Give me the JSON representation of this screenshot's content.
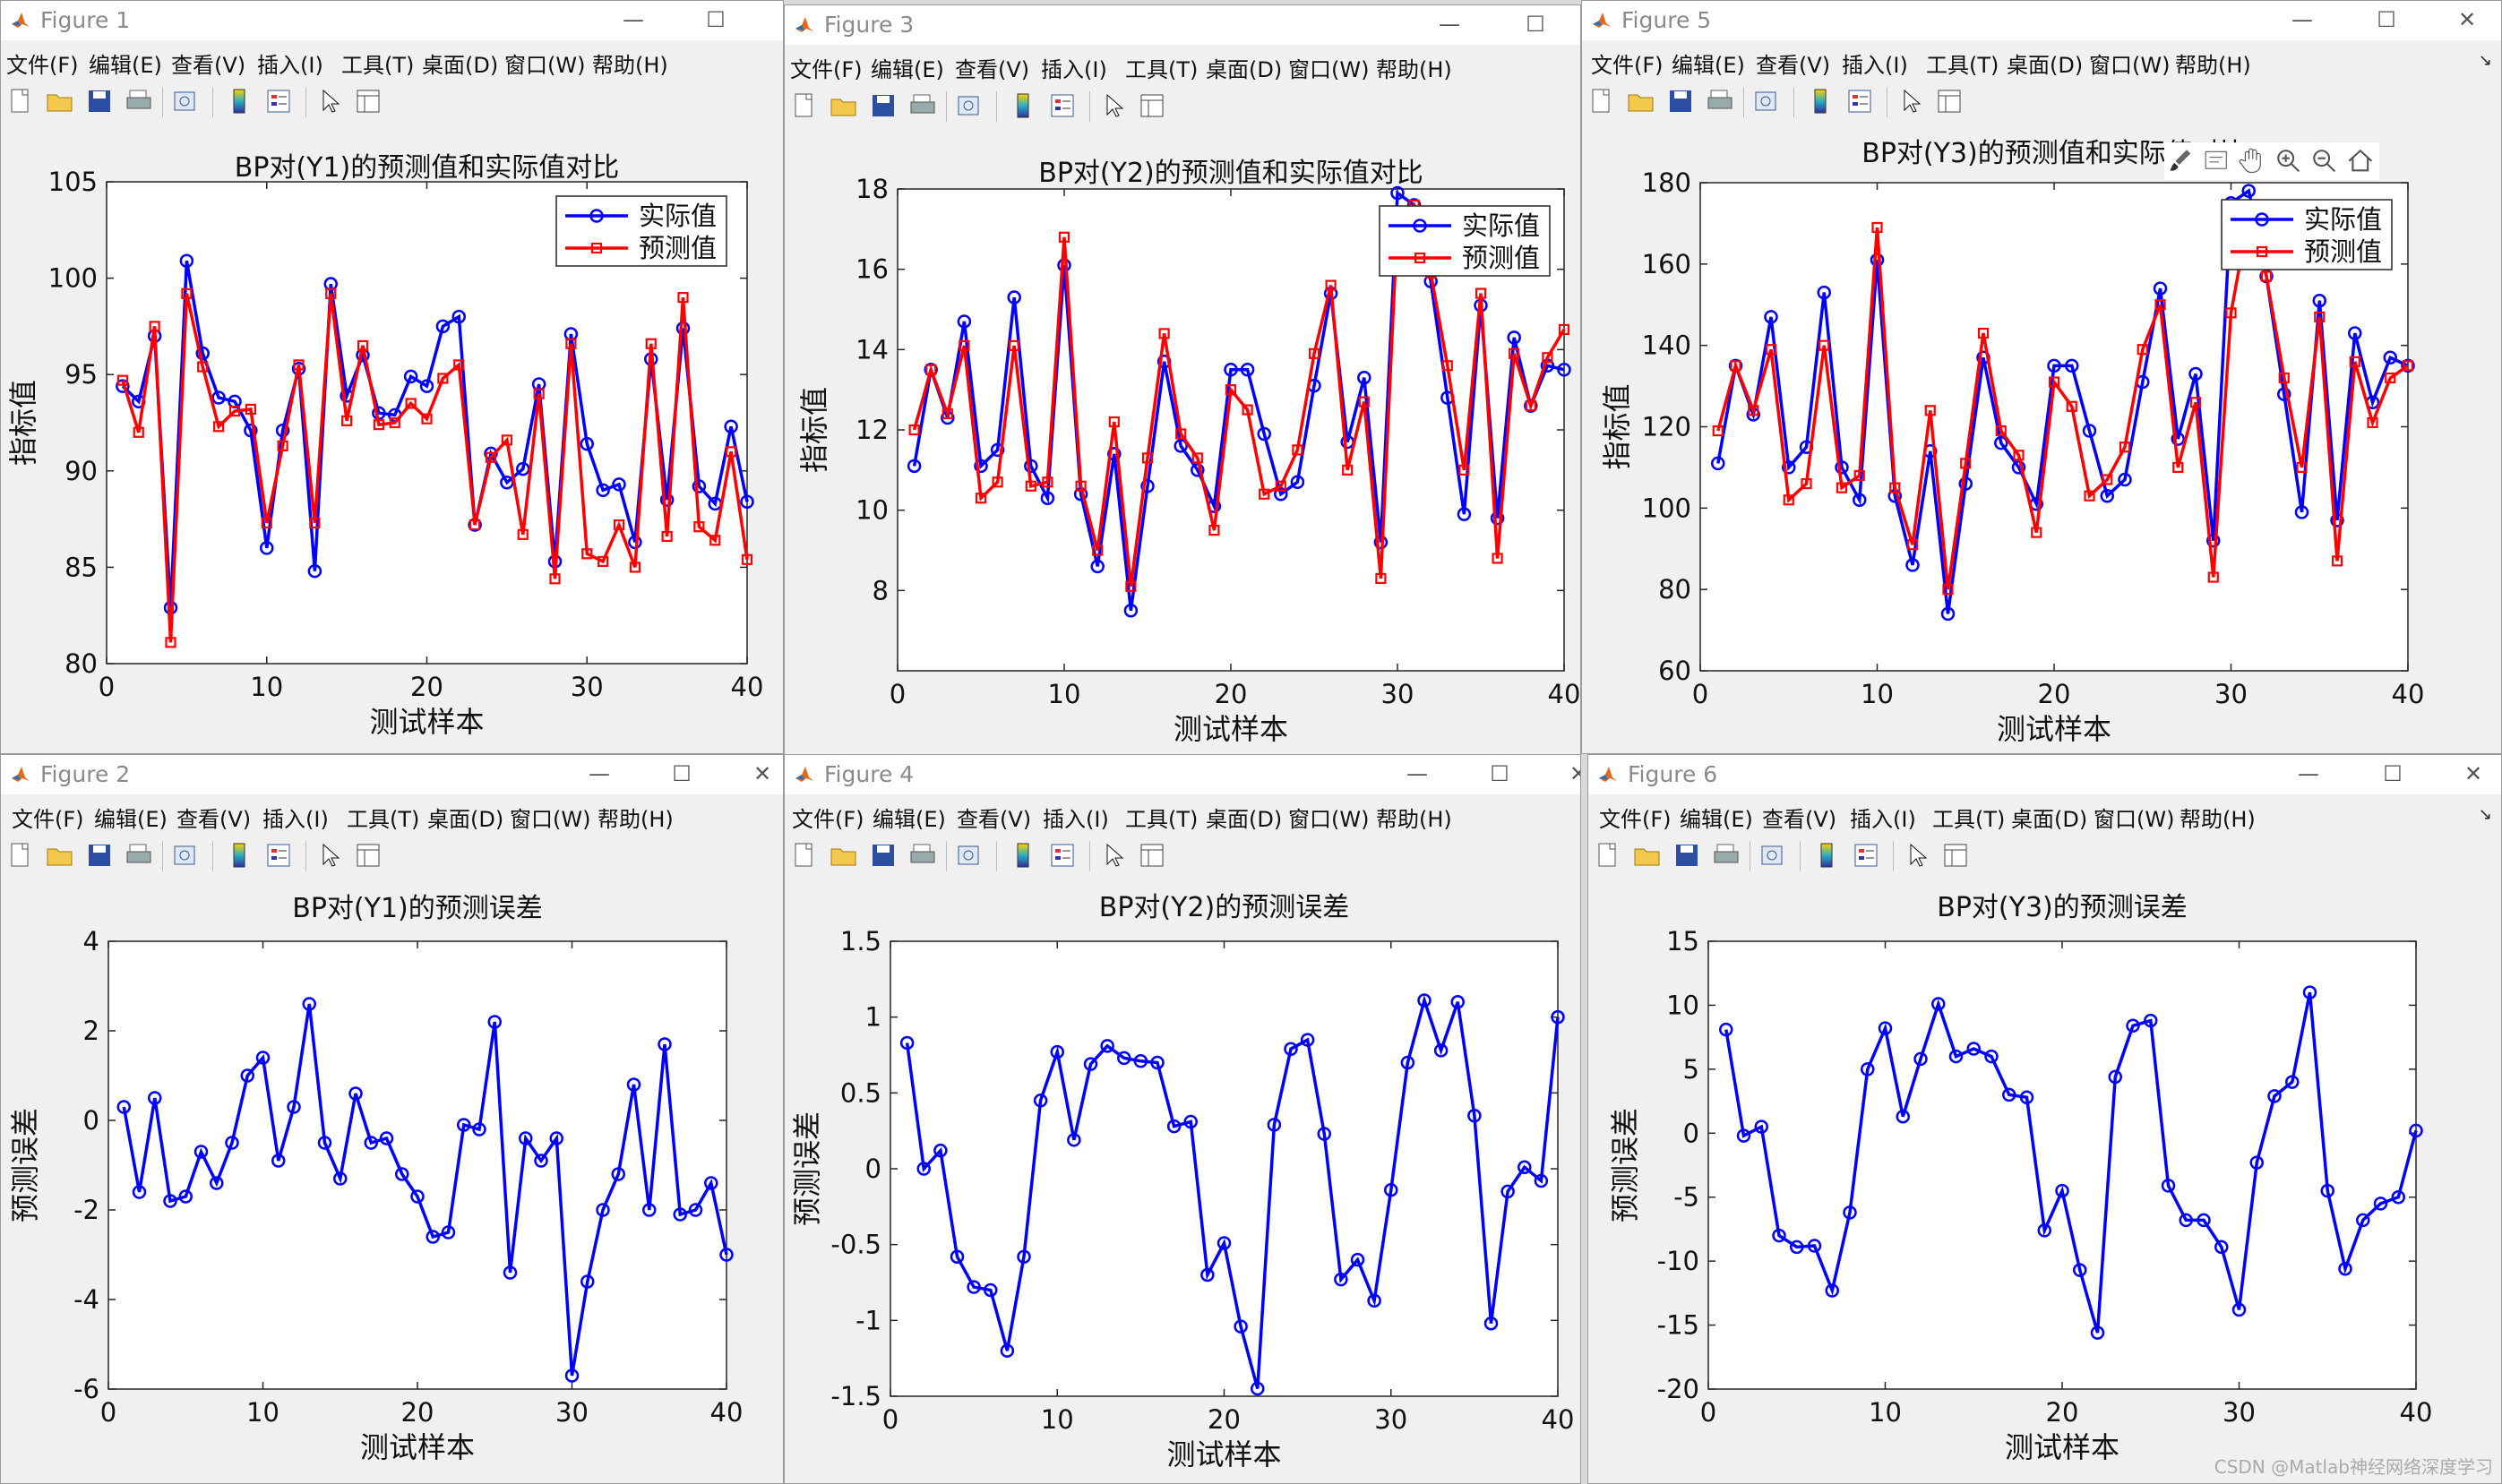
{
  "menus": [
    "文件(F)",
    "编辑(E)",
    "查看(V)",
    "插入(I)",
    "工具(T)",
    "桌面(D)",
    "窗口(W)",
    "帮助(H)"
  ],
  "toolbar_icons": [
    "new-figure-icon",
    "open-file-icon",
    "save-icon",
    "print-icon",
    "print-preview-icon",
    "colorbar-icon",
    "legend-icon",
    "edit-plot-arrow-icon",
    "property-inspector-icon"
  ],
  "axes_toolbar_icons": [
    "brush-icon",
    "data-tips-icon",
    "pan-hand-icon",
    "zoom-in-icon",
    "zoom-out-icon",
    "home-icon"
  ],
  "watermark": "CSDN @Matlab神经网络深度学习",
  "colors": {
    "actual": "#0000ff",
    "predicted": "#ff0000",
    "error": "#0000ff"
  },
  "windows": [
    {
      "id": "fig1",
      "title": "Figure 1",
      "chart_data": {
        "type": "line",
        "title": "BP对(Y1)的预测值和实际值对比",
        "xlabel": "测试样本",
        "ylabel": "指标值",
        "xlim": [
          0,
          40
        ],
        "ylim": [
          80,
          105
        ],
        "xticks": [
          0,
          10,
          20,
          30,
          40
        ],
        "yticks": [
          80,
          85,
          90,
          95,
          100,
          105
        ],
        "legend": "top-right",
        "x": [
          1,
          2,
          3,
          4,
          5,
          6,
          7,
          8,
          9,
          10,
          11,
          12,
          13,
          14,
          15,
          16,
          17,
          18,
          19,
          20,
          21,
          22,
          23,
          24,
          25,
          26,
          27,
          28,
          29,
          30,
          31,
          32,
          33,
          34,
          35,
          36,
          37,
          38,
          39,
          40
        ],
        "series": [
          {
            "name": "实际值",
            "marker": "circle",
            "values": [
              94.4,
              93.6,
              97.0,
              82.9,
              100.9,
              96.1,
              93.8,
              93.6,
              92.1,
              86.0,
              92.1,
              95.3,
              84.8,
              99.7,
              93.9,
              96.0,
              93.0,
              92.9,
              94.9,
              94.4,
              97.5,
              98.0,
              87.2,
              90.9,
              89.4,
              90.1,
              94.5,
              85.3,
              97.1,
              91.4,
              89.0,
              89.3,
              86.3,
              95.8,
              88.5,
              97.4,
              89.2,
              88.3,
              92.3,
              88.4
            ]
          },
          {
            "name": "预测值",
            "marker": "square",
            "values": [
              94.7,
              92.0,
              97.5,
              81.1,
              99.2,
              95.4,
              92.3,
              93.1,
              93.2,
              87.3,
              91.3,
              95.5,
              87.3,
              99.2,
              92.6,
              96.5,
              92.4,
              92.5,
              93.5,
              92.7,
              94.8,
              95.5,
              87.2,
              90.7,
              91.6,
              86.7,
              94.0,
              84.4,
              96.6,
              85.7,
              85.3,
              87.2,
              85.0,
              96.6,
              86.6,
              99.0,
              87.1,
              86.4,
              91.0,
              85.4
            ]
          }
        ]
      }
    },
    {
      "id": "fig3",
      "title": "Figure 3",
      "chart_data": {
        "type": "line",
        "title": "BP对(Y2)的预测值和实际值对比",
        "xlabel": "测试样本",
        "ylabel": "指标值",
        "xlim": [
          0,
          40
        ],
        "ylim": [
          6,
          18
        ],
        "xticks": [
          0,
          10,
          20,
          30,
          40
        ],
        "yticks": [
          8,
          10,
          12,
          14,
          16,
          18
        ],
        "legend": "top-right",
        "x": [
          1,
          2,
          3,
          4,
          5,
          6,
          7,
          8,
          9,
          10,
          11,
          12,
          13,
          14,
          15,
          16,
          17,
          18,
          19,
          20,
          21,
          22,
          23,
          24,
          25,
          26,
          27,
          28,
          29,
          30,
          31,
          32,
          33,
          34,
          35,
          36,
          37,
          38,
          39,
          40
        ],
        "series": [
          {
            "name": "实际值",
            "marker": "circle",
            "values": [
              11.1,
              13.5,
              12.3,
              14.7,
              11.1,
              11.5,
              15.3,
              11.1,
              10.3,
              16.1,
              10.4,
              8.6,
              11.4,
              7.5,
              10.6,
              13.7,
              11.6,
              11.0,
              10.1,
              13.5,
              13.5,
              11.9,
              10.4,
              10.7,
              13.1,
              15.4,
              11.7,
              13.3,
              9.2,
              17.9,
              17.6,
              15.7,
              12.8,
              9.9,
              15.1,
              9.8,
              14.3,
              12.6,
              13.6,
              13.5
            ]
          },
          {
            "name": "预测值",
            "marker": "square",
            "values": [
              12.0,
              13.5,
              12.4,
              14.1,
              10.3,
              10.7,
              14.1,
              10.6,
              10.7,
              16.8,
              10.6,
              9.0,
              12.2,
              8.1,
              11.3,
              14.4,
              11.9,
              11.3,
              9.5,
              13.0,
              12.5,
              10.4,
              10.6,
              11.5,
              13.9,
              15.6,
              11.0,
              12.7,
              8.3,
              17.2,
              17.6,
              15.9,
              13.6,
              11.0,
              15.4,
              8.8,
              13.9,
              12.6,
              13.8,
              14.5
            ]
          }
        ]
      }
    },
    {
      "id": "fig5",
      "title": "Figure 5",
      "chart_data": {
        "type": "line",
        "title": "BP对(Y3)的预测值和实际值对比",
        "xlabel": "测试样本",
        "ylabel": "指标值",
        "xlim": [
          0,
          40
        ],
        "ylim": [
          60,
          180
        ],
        "xticks": [
          0,
          10,
          20,
          30,
          40
        ],
        "yticks": [
          60,
          80,
          100,
          120,
          140,
          160,
          180
        ],
        "legend": "top-right",
        "x": [
          1,
          2,
          3,
          4,
          5,
          6,
          7,
          8,
          9,
          10,
          11,
          12,
          13,
          14,
          15,
          16,
          17,
          18,
          19,
          20,
          21,
          22,
          23,
          24,
          25,
          26,
          27,
          28,
          29,
          30,
          31,
          32,
          33,
          34,
          35,
          36,
          37,
          38,
          39,
          40
        ],
        "series": [
          {
            "name": "实际值",
            "marker": "circle",
            "values": [
              111,
              135,
              123,
              147,
              110,
              115,
              153,
              110,
              102,
              161,
              103,
              86,
              114,
              74,
              106,
              137,
              116,
              110,
              101,
              135,
              135,
              119,
              103,
              107,
              131,
              154,
              117,
              133,
              92,
              175,
              178,
              157,
              128,
              99,
              151,
              97,
              143,
              126,
              137,
              135
            ]
          },
          {
            "name": "预测值",
            "marker": "square",
            "values": [
              119,
              135,
              124,
              139,
              102,
              106,
              140,
              105,
              108,
              169,
              105,
              91,
              124,
              80,
              111,
              143,
              119,
              113,
              94,
              131,
              125,
              103,
              107,
              115,
              139,
              150,
              110,
              126,
              83,
              148,
              172,
              157,
              132,
              110,
              147,
              87,
              136,
              121,
              132,
              135
            ]
          }
        ]
      }
    },
    {
      "id": "fig2",
      "title": "Figure 2",
      "chart_data": {
        "type": "line",
        "title": "BP对(Y1)的预测误差",
        "xlabel": "测试样本",
        "ylabel": "预测误差",
        "xlim": [
          0,
          40
        ],
        "ylim": [
          -6,
          4
        ],
        "xticks": [
          0,
          10,
          20,
          30,
          40
        ],
        "yticks": [
          -6,
          -4,
          -2,
          0,
          2,
          4
        ],
        "x": [
          1,
          2,
          3,
          4,
          5,
          6,
          7,
          8,
          9,
          10,
          11,
          12,
          13,
          14,
          15,
          16,
          17,
          18,
          19,
          20,
          21,
          22,
          23,
          24,
          25,
          26,
          27,
          28,
          29,
          30,
          31,
          32,
          33,
          34,
          35,
          36,
          37,
          38,
          39,
          40
        ],
        "series": [
          {
            "name": "",
            "marker": "circle",
            "values": [
              0.3,
              -1.6,
              0.5,
              -1.8,
              -1.7,
              -0.7,
              -1.4,
              -0.5,
              1.0,
              1.4,
              -0.9,
              0.3,
              2.6,
              -0.5,
              -1.3,
              0.6,
              -0.5,
              -0.4,
              -1.2,
              -1.7,
              -2.6,
              -2.5,
              -0.1,
              -0.2,
              2.2,
              -3.4,
              -0.4,
              -0.9,
              -0.4,
              -5.7,
              -3.6,
              -2.0,
              -1.2,
              0.8,
              -2.0,
              1.7,
              -2.1,
              -2.0,
              -1.4,
              -3.0
            ]
          }
        ]
      }
    },
    {
      "id": "fig4",
      "title": "Figure 4",
      "chart_data": {
        "type": "line",
        "title": "BP对(Y2)的预测误差",
        "xlabel": "测试样本",
        "ylabel": "预测误差",
        "xlim": [
          0,
          40
        ],
        "ylim": [
          -1.5,
          1.5
        ],
        "xticks": [
          0,
          10,
          20,
          30,
          40
        ],
        "yticks": [
          -1.5,
          -1,
          -0.5,
          0,
          0.5,
          1,
          1.5
        ],
        "x": [
          1,
          2,
          3,
          4,
          5,
          6,
          7,
          8,
          9,
          10,
          11,
          12,
          13,
          14,
          15,
          16,
          17,
          18,
          19,
          20,
          21,
          22,
          23,
          24,
          25,
          26,
          27,
          28,
          29,
          30,
          31,
          32,
          33,
          34,
          35,
          36,
          37,
          38,
          39,
          40
        ],
        "series": [
          {
            "name": "",
            "marker": "circle",
            "values": [
              0.83,
              0.0,
              0.12,
              -0.58,
              -0.78,
              -0.8,
              -1.2,
              -0.58,
              0.45,
              0.77,
              0.19,
              0.69,
              0.81,
              0.73,
              0.71,
              0.7,
              0.28,
              0.31,
              -0.7,
              -0.49,
              -1.04,
              -1.45,
              0.29,
              0.79,
              0.85,
              0.23,
              -0.73,
              -0.6,
              -0.87,
              -0.14,
              0.7,
              1.11,
              0.78,
              1.1,
              0.35,
              -1.02,
              -0.15,
              0.01,
              -0.08,
              1.0
            ]
          }
        ]
      }
    },
    {
      "id": "fig6",
      "title": "Figure 6",
      "chart_data": {
        "type": "line",
        "title": "BP对(Y3)的预测误差",
        "xlabel": "测试样本",
        "ylabel": "预测误差",
        "xlim": [
          0,
          40
        ],
        "ylim": [
          -20,
          15
        ],
        "xticks": [
          0,
          10,
          20,
          30,
          40
        ],
        "yticks": [
          -20,
          -15,
          -10,
          -5,
          0,
          5,
          10,
          15
        ],
        "x": [
          1,
          2,
          3,
          4,
          5,
          6,
          7,
          8,
          9,
          10,
          11,
          12,
          13,
          14,
          15,
          16,
          17,
          18,
          19,
          20,
          21,
          22,
          23,
          24,
          25,
          26,
          27,
          28,
          29,
          30,
          31,
          32,
          33,
          34,
          35,
          36,
          37,
          38,
          39,
          40
        ],
        "series": [
          {
            "name": "",
            "marker": "circle",
            "values": [
              8.1,
              -0.2,
              0.5,
              -8.0,
              -8.9,
              -8.8,
              -12.3,
              -6.2,
              5.0,
              8.2,
              1.3,
              5.8,
              10.1,
              6.0,
              6.6,
              6.0,
              3.0,
              2.8,
              -7.6,
              -4.5,
              -10.7,
              -15.6,
              4.4,
              8.4,
              8.8,
              -4.1,
              -6.8,
              -6.8,
              -8.9,
              -13.8,
              -2.3,
              2.9,
              4.0,
              11.0,
              -4.5,
              -10.6,
              -6.8,
              -5.5,
              -5.0,
              0.2
            ]
          }
        ]
      }
    }
  ]
}
